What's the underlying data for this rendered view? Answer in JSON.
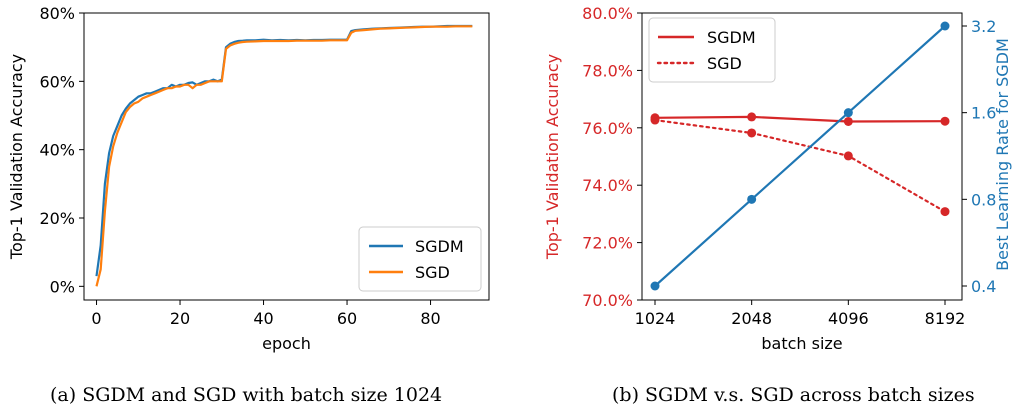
{
  "captions": {
    "a": "(a) SGDM and SGD with batch size 1024",
    "b": "(b) SGDM v.s. SGD across batch sizes"
  },
  "chart_data": [
    {
      "type": "line",
      "xlabel": "epoch",
      "ylabel": "Top-1 Validation Accuracy",
      "xlim": [
        -3,
        94
      ],
      "ylim": [
        -0.04,
        0.8
      ],
      "xticks": [
        0,
        20,
        40,
        60,
        80
      ],
      "yticks": [
        0,
        0.2,
        0.4,
        0.6,
        0.8
      ],
      "ytick_labels": [
        "0%",
        "20%",
        "40%",
        "60%",
        "80%"
      ],
      "legend": "lower-right",
      "grid": false,
      "series": [
        {
          "name": "SGDM",
          "color": "#1f77b4",
          "x": [
            0,
            1,
            2,
            3,
            4,
            5,
            6,
            7,
            8,
            9,
            10,
            11,
            12,
            13,
            14,
            15,
            16,
            17,
            18,
            19,
            20,
            21,
            22,
            23,
            24,
            25,
            26,
            27,
            28,
            29,
            30,
            31,
            32,
            33,
            34,
            35,
            36,
            38,
            40,
            42,
            44,
            46,
            48,
            50,
            52,
            54,
            56,
            58,
            60,
            61,
            62,
            64,
            66,
            68,
            70,
            72,
            74,
            76,
            78,
            80,
            82,
            84,
            86,
            88,
            90
          ],
          "y": [
            0.03,
            0.12,
            0.3,
            0.39,
            0.44,
            0.47,
            0.5,
            0.52,
            0.535,
            0.545,
            0.555,
            0.56,
            0.565,
            0.565,
            0.57,
            0.575,
            0.58,
            0.58,
            0.59,
            0.585,
            0.59,
            0.59,
            0.595,
            0.597,
            0.59,
            0.595,
            0.6,
            0.6,
            0.605,
            0.6,
            0.605,
            0.7,
            0.71,
            0.715,
            0.718,
            0.719,
            0.72,
            0.72,
            0.722,
            0.72,
            0.721,
            0.72,
            0.721,
            0.72,
            0.721,
            0.721,
            0.722,
            0.722,
            0.722,
            0.747,
            0.75,
            0.752,
            0.754,
            0.755,
            0.756,
            0.757,
            0.758,
            0.759,
            0.76,
            0.76,
            0.761,
            0.762,
            0.762,
            0.762,
            0.762
          ]
        },
        {
          "name": "SGD",
          "color": "#ff7f0e",
          "x": [
            0,
            1,
            2,
            3,
            4,
            5,
            6,
            7,
            8,
            9,
            10,
            11,
            12,
            13,
            14,
            15,
            16,
            17,
            18,
            19,
            20,
            21,
            22,
            23,
            24,
            25,
            26,
            27,
            28,
            29,
            30,
            31,
            32,
            33,
            34,
            35,
            36,
            38,
            40,
            42,
            44,
            46,
            48,
            50,
            52,
            54,
            56,
            58,
            60,
            61,
            62,
            64,
            66,
            68,
            70,
            72,
            74,
            76,
            78,
            80,
            82,
            84,
            86,
            88,
            90
          ],
          "y": [
            0.0,
            0.05,
            0.22,
            0.35,
            0.41,
            0.45,
            0.48,
            0.51,
            0.525,
            0.535,
            0.54,
            0.55,
            0.555,
            0.56,
            0.565,
            0.57,
            0.575,
            0.58,
            0.58,
            0.585,
            0.585,
            0.59,
            0.59,
            0.58,
            0.59,
            0.59,
            0.595,
            0.6,
            0.6,
            0.6,
            0.6,
            0.695,
            0.705,
            0.71,
            0.713,
            0.715,
            0.716,
            0.717,
            0.718,
            0.718,
            0.718,
            0.718,
            0.719,
            0.719,
            0.719,
            0.719,
            0.72,
            0.72,
            0.72,
            0.742,
            0.748,
            0.75,
            0.752,
            0.754,
            0.755,
            0.756,
            0.757,
            0.758,
            0.759,
            0.76,
            0.76,
            0.76,
            0.761,
            0.761,
            0.761
          ]
        }
      ]
    },
    {
      "type": "line",
      "xlabel": "batch size",
      "ylabel": "Top-1 Validation Accuracy",
      "ylabel_right": "Best Learning Rate for SGDM",
      "categories": [
        "1024",
        "2048",
        "4096",
        "8192"
      ],
      "ylim": [
        0.7,
        0.8
      ],
      "yticks": [
        0.7,
        0.72,
        0.74,
        0.76,
        0.78,
        0.8
      ],
      "ytick_labels": [
        "70.0%",
        "72.0%",
        "74.0%",
        "76.0%",
        "78.0%",
        "80.0%"
      ],
      "ylim_right": [
        0.4,
        3.2
      ],
      "yscale_right": "log",
      "yticks_right": [
        0.4,
        0.8,
        1.6,
        3.2
      ],
      "ytick_labels_right": [
        "0.4",
        "0.8",
        "1.6",
        "3.2"
      ],
      "left_axis_color": "#d62728",
      "right_axis_color": "#1f77b4",
      "legend": "top-left",
      "grid": false,
      "series": [
        {
          "name": "SGDM",
          "axis": "left",
          "style": "solid",
          "color": "#d62728",
          "values": [
            0.7635,
            0.7638,
            0.7622,
            0.7623
          ]
        },
        {
          "name": "SGD",
          "axis": "left",
          "style": "dotted",
          "color": "#d62728",
          "values": [
            0.7627,
            0.7582,
            0.7502,
            0.7308
          ]
        },
        {
          "axis": "right",
          "style": "solid",
          "color": "#1f77b4",
          "values": [
            0.4,
            0.8,
            1.6,
            3.2
          ]
        }
      ]
    }
  ]
}
